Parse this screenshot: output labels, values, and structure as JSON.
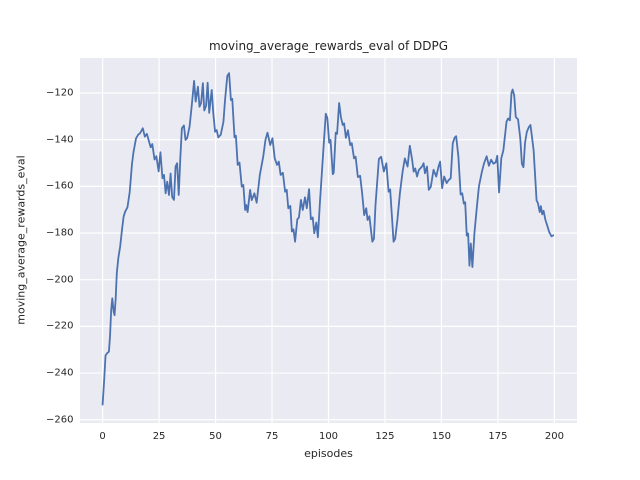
{
  "figure": {
    "title": "moving_average_rewards_eval of DDPG",
    "xlabel": "episodes",
    "ylabel": "moving_average_rewards_eval"
  },
  "colors": {
    "axes_background": "#eaeaf2",
    "grid": "#ffffff",
    "line": "#4c72b0",
    "text": "#262626",
    "figure_background": "#ffffff"
  },
  "chart_data": {
    "type": "line",
    "title": "moving_average_rewards_eval of DDPG",
    "xlabel": "episodes",
    "ylabel": "moving_average_rewards_eval",
    "xlim": [
      -10,
      210
    ],
    "ylim": [
      -261.4,
      -105
    ],
    "x_ticks": [
      0,
      25,
      50,
      75,
      100,
      125,
      150,
      175,
      200
    ],
    "y_ticks": [
      -120,
      -140,
      -160,
      -180,
      -200,
      -220,
      -240,
      -260
    ],
    "grid": true,
    "legend": false,
    "series": [
      {
        "name": "moving_average_rewards_eval",
        "points": [
          [
            0,
            -253.5
          ],
          [
            0.7,
            -243
          ],
          [
            1.3,
            -232.5
          ],
          [
            2,
            -231.5
          ],
          [
            2.8,
            -230.8
          ],
          [
            3.3,
            -224
          ],
          [
            3.8,
            -213
          ],
          [
            4.3,
            -208
          ],
          [
            4.9,
            -213.8
          ],
          [
            5.3,
            -215.2
          ],
          [
            5.8,
            -208
          ],
          [
            6.3,
            -197
          ],
          [
            7,
            -190.5
          ],
          [
            7.8,
            -185.6
          ],
          [
            8.6,
            -178.5
          ],
          [
            9.3,
            -173
          ],
          [
            10,
            -170.8
          ],
          [
            11,
            -169
          ],
          [
            12,
            -162.5
          ],
          [
            13,
            -150.5
          ],
          [
            13.7,
            -145.2
          ],
          [
            14.8,
            -139.4
          ],
          [
            15.8,
            -137.8
          ],
          [
            16.6,
            -137.2
          ],
          [
            17.8,
            -135.1
          ],
          [
            18.7,
            -138.7
          ],
          [
            19.6,
            -137.5
          ],
          [
            21.3,
            -143.3
          ],
          [
            22,
            -141.9
          ],
          [
            23,
            -148.5
          ],
          [
            23.8,
            -147.1
          ],
          [
            24.8,
            -153.6
          ],
          [
            25.6,
            -145.4
          ],
          [
            26.5,
            -156.5
          ],
          [
            27.2,
            -155.1
          ],
          [
            27.9,
            -163
          ],
          [
            28.6,
            -158
          ],
          [
            29.4,
            -163.7
          ],
          [
            30.1,
            -154.5
          ],
          [
            30.8,
            -164.5
          ],
          [
            31.6,
            -165.8
          ],
          [
            32.3,
            -151.5
          ],
          [
            33,
            -150.1
          ],
          [
            33.7,
            -163.7
          ],
          [
            34.4,
            -148
          ],
          [
            35.1,
            -135.1
          ],
          [
            36,
            -133.9
          ],
          [
            36.7,
            -140.1
          ],
          [
            37.4,
            -139.4
          ],
          [
            38.5,
            -134.4
          ],
          [
            39.5,
            -125
          ],
          [
            40.5,
            -114.8
          ],
          [
            41.2,
            -123.7
          ],
          [
            42.2,
            -117.3
          ],
          [
            42.9,
            -125.9
          ],
          [
            43.6,
            -124.3
          ],
          [
            44.4,
            -115.8
          ],
          [
            45,
            -127.5
          ],
          [
            45.8,
            -125.5
          ],
          [
            46.5,
            -115.6
          ],
          [
            47.2,
            -128.5
          ],
          [
            48.3,
            -118.7
          ],
          [
            49,
            -128.7
          ],
          [
            49.8,
            -136.6
          ],
          [
            50.5,
            -135.9
          ],
          [
            51.2,
            -139
          ],
          [
            52.3,
            -137.9
          ],
          [
            53.5,
            -132.3
          ],
          [
            54.2,
            -123
          ],
          [
            55.2,
            -112.7
          ],
          [
            56,
            -111.5
          ],
          [
            56.8,
            -123
          ],
          [
            57.4,
            -122.5
          ],
          [
            58.4,
            -139
          ],
          [
            59,
            -138.3
          ],
          [
            59.8,
            -150.8
          ],
          [
            60.6,
            -149.8
          ],
          [
            61.6,
            -160.1
          ],
          [
            62.3,
            -159.4
          ],
          [
            63.1,
            -170.1
          ],
          [
            63.6,
            -168
          ],
          [
            64.2,
            -171
          ],
          [
            65.3,
            -161.5
          ],
          [
            66,
            -165.9
          ],
          [
            67.2,
            -163
          ],
          [
            68.2,
            -167
          ],
          [
            69.6,
            -155.1
          ],
          [
            71.1,
            -147.3
          ],
          [
            72.1,
            -140.1
          ],
          [
            73,
            -137
          ],
          [
            74.2,
            -142.3
          ],
          [
            75.2,
            -139.4
          ],
          [
            76.2,
            -148
          ],
          [
            77.2,
            -150.8
          ],
          [
            78,
            -149.4
          ],
          [
            78.8,
            -155.1
          ],
          [
            79.8,
            -154.2
          ],
          [
            80.8,
            -162.3
          ],
          [
            81.5,
            -161.5
          ],
          [
            82.2,
            -169.4
          ],
          [
            83.1,
            -168.4
          ],
          [
            83.8,
            -179.4
          ],
          [
            84.5,
            -178.4
          ],
          [
            85.2,
            -183.7
          ],
          [
            86.2,
            -174.1
          ],
          [
            86.9,
            -173.4
          ],
          [
            87.8,
            -165.8
          ],
          [
            88.6,
            -170.1
          ],
          [
            89.6,
            -164.7
          ],
          [
            90.4,
            -169.4
          ],
          [
            91.4,
            -161.2
          ],
          [
            92.2,
            -174.1
          ],
          [
            93,
            -173.3
          ],
          [
            93.7,
            -180.1
          ],
          [
            94.6,
            -175.5
          ],
          [
            95.3,
            -181.8
          ],
          [
            96.2,
            -166.9
          ],
          [
            97.2,
            -152.2
          ],
          [
            98,
            -140.4
          ],
          [
            98.8,
            -128.9
          ],
          [
            99.5,
            -130.8
          ],
          [
            100.3,
            -141.3
          ],
          [
            100.9,
            -140.1
          ],
          [
            101.9,
            -154.8
          ],
          [
            102.3,
            -154.2
          ],
          [
            103.2,
            -137
          ],
          [
            103.8,
            -137.5
          ],
          [
            104.7,
            -124.3
          ],
          [
            105.5,
            -130.4
          ],
          [
            106.3,
            -133.7
          ],
          [
            106.9,
            -133
          ],
          [
            107.7,
            -139.2
          ],
          [
            108.6,
            -136
          ],
          [
            109.6,
            -142.3
          ],
          [
            110.3,
            -141.5
          ],
          [
            111.3,
            -148
          ],
          [
            112,
            -147.3
          ],
          [
            113,
            -156
          ],
          [
            114,
            -155.5
          ],
          [
            114.9,
            -163
          ],
          [
            115.8,
            -172.3
          ],
          [
            116.7,
            -169.4
          ],
          [
            117.3,
            -174.4
          ],
          [
            118.1,
            -172.8
          ],
          [
            119.4,
            -183.7
          ],
          [
            120.1,
            -182.5
          ],
          [
            120.8,
            -168
          ],
          [
            122.3,
            -148.3
          ],
          [
            123.3,
            -147.3
          ],
          [
            124.5,
            -153.7
          ],
          [
            125.6,
            -150.1
          ],
          [
            126.6,
            -162.3
          ],
          [
            127.3,
            -161.3
          ],
          [
            128.8,
            -183.7
          ],
          [
            129.5,
            -182.5
          ],
          [
            130.5,
            -174.4
          ],
          [
            131.6,
            -163
          ],
          [
            132.8,
            -153.7
          ],
          [
            133.8,
            -148
          ],
          [
            135,
            -151.5
          ],
          [
            136,
            -142.6
          ],
          [
            137,
            -148.5
          ],
          [
            137.7,
            -153.7
          ],
          [
            138.4,
            -152.3
          ],
          [
            139.2,
            -155.8
          ],
          [
            140,
            -153
          ],
          [
            141.4,
            -151.5
          ],
          [
            142.1,
            -150.1
          ],
          [
            142.7,
            -154.4
          ],
          [
            143.6,
            -151.5
          ],
          [
            144.4,
            -161.5
          ],
          [
            145.3,
            -160.1
          ],
          [
            146.5,
            -152.9
          ],
          [
            147.7,
            -155.8
          ],
          [
            148.7,
            -151.5
          ],
          [
            149.4,
            -149.4
          ],
          [
            150.3,
            -160.8
          ],
          [
            151.2,
            -155.8
          ],
          [
            152.3,
            -158.6
          ],
          [
            153.2,
            -157.3
          ],
          [
            154.1,
            -156.5
          ],
          [
            155,
            -141.6
          ],
          [
            155.8,
            -139.2
          ],
          [
            156.5,
            -138.5
          ],
          [
            157.5,
            -147.3
          ],
          [
            158.5,
            -163.5
          ],
          [
            159.2,
            -163
          ],
          [
            159.9,
            -167.4
          ],
          [
            160.5,
            -166.8
          ],
          [
            161.2,
            -181.1
          ],
          [
            161.8,
            -180.2
          ],
          [
            162.4,
            -194
          ],
          [
            163,
            -184.5
          ],
          [
            163.7,
            -194.6
          ],
          [
            164.6,
            -180
          ],
          [
            165.6,
            -169.6
          ],
          [
            166.6,
            -159.9
          ],
          [
            167.8,
            -154.2
          ],
          [
            168.8,
            -150.3
          ],
          [
            170,
            -147.1
          ],
          [
            171,
            -151.2
          ],
          [
            172,
            -148.6
          ],
          [
            173,
            -150.3
          ],
          [
            174,
            -149.7
          ],
          [
            174.7,
            -146.9
          ],
          [
            175.5,
            -162.6
          ],
          [
            176.5,
            -147.9
          ],
          [
            177.4,
            -144.6
          ],
          [
            178.8,
            -132.3
          ],
          [
            179.5,
            -130.9
          ],
          [
            180.3,
            -131.7
          ],
          [
            181,
            -119.9
          ],
          [
            181.5,
            -118.5
          ],
          [
            182.2,
            -121
          ],
          [
            182.9,
            -130.3
          ],
          [
            183.9,
            -131.3
          ],
          [
            184.9,
            -139.5
          ],
          [
            185.6,
            -150.3
          ],
          [
            186.3,
            -151.8
          ],
          [
            187,
            -141.3
          ],
          [
            187.8,
            -136.6
          ],
          [
            188.7,
            -134.6
          ],
          [
            189.4,
            -133.7
          ],
          [
            190.1,
            -139
          ],
          [
            190.8,
            -144.6
          ],
          [
            192.1,
            -166
          ],
          [
            192.7,
            -167.2
          ],
          [
            193.5,
            -171
          ],
          [
            194,
            -168.5
          ],
          [
            194.6,
            -172
          ],
          [
            195.2,
            -170.5
          ],
          [
            196,
            -174.3
          ],
          [
            196.8,
            -176.7
          ],
          [
            197.7,
            -179.6
          ],
          [
            198.7,
            -181.4
          ],
          [
            199.5,
            -181
          ]
        ]
      }
    ]
  }
}
